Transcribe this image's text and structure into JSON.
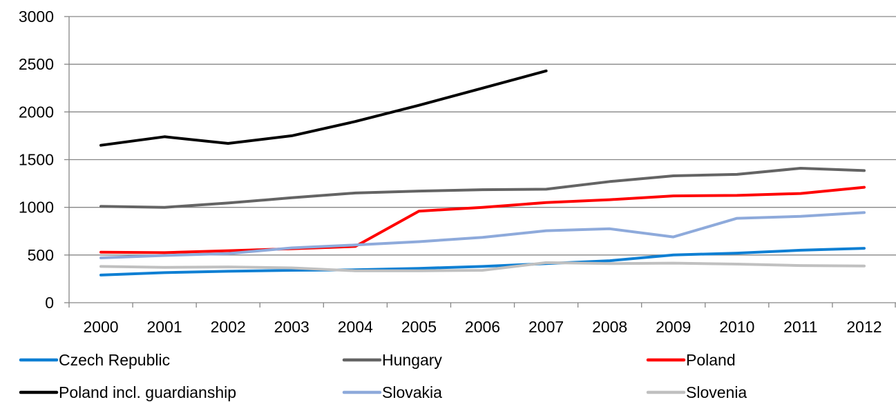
{
  "chart_data": {
    "type": "line",
    "title": "",
    "xlabel": "",
    "ylabel": "",
    "x": [
      "2000",
      "2001",
      "2002",
      "2003",
      "2004",
      "2005",
      "2006",
      "2007",
      "2008",
      "2009",
      "2010",
      "2011",
      "2012"
    ],
    "ylim": [
      0,
      3000
    ],
    "yticks": [
      0,
      500,
      1000,
      1500,
      2000,
      2500,
      3000
    ],
    "grid": "horizontal",
    "legend": "bottom",
    "series": [
      {
        "name": "Czech Republic",
        "color": "#0e7fd3",
        "values": [
          290,
          315,
          330,
          340,
          345,
          360,
          380,
          410,
          440,
          500,
          520,
          550,
          570
        ]
      },
      {
        "name": "Hungary",
        "color": "#646464",
        "values": [
          1010,
          1000,
          1045,
          1100,
          1150,
          1170,
          1185,
          1190,
          1270,
          1330,
          1345,
          1410,
          1385
        ]
      },
      {
        "name": "Poland",
        "color": "#ff0000",
        "values": [
          530,
          525,
          545,
          565,
          590,
          960,
          1000,
          1050,
          1080,
          1120,
          1125,
          1145,
          1210
        ]
      },
      {
        "name": "Poland incl. guardianship",
        "color": "#000000",
        "values": [
          1650,
          1740,
          1670,
          1750,
          1900,
          2070,
          2250,
          2430,
          null,
          null,
          null,
          null,
          null
        ]
      },
      {
        "name": "Slovakia",
        "color": "#8eaadb",
        "values": [
          470,
          495,
          515,
          575,
          605,
          640,
          685,
          755,
          775,
          690,
          885,
          905,
          945
        ]
      },
      {
        "name": "Slovenia",
        "color": "#c0c0c0",
        "values": [
          380,
          370,
          375,
          365,
          335,
          335,
          340,
          420,
          410,
          415,
          405,
          390,
          385
        ]
      }
    ]
  }
}
